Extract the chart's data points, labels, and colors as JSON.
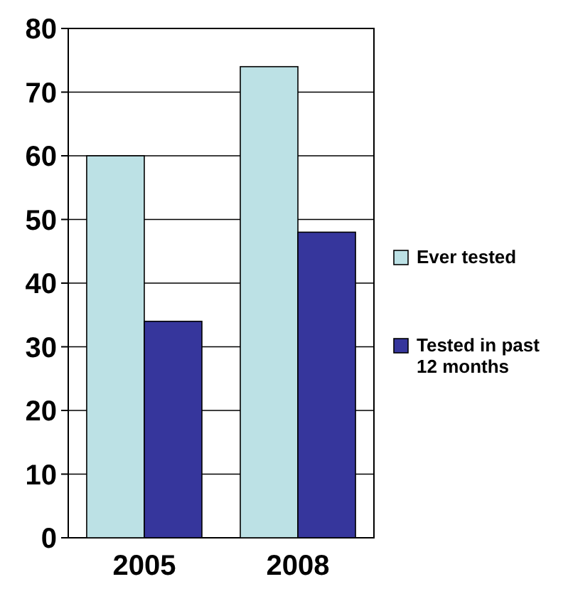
{
  "chart_data": {
    "type": "bar",
    "categories": [
      "2005",
      "2008"
    ],
    "series": [
      {
        "name": "Ever tested",
        "color": "#bce1e5",
        "values": [
          60,
          74
        ]
      },
      {
        "name": "Tested in past 12 months",
        "color": "#36369c",
        "values": [
          34,
          48
        ]
      }
    ],
    "ylim": [
      0,
      80
    ],
    "yticks": [
      0,
      10,
      20,
      30,
      40,
      50,
      60,
      70,
      80
    ],
    "grid": "y",
    "legend": "right"
  }
}
